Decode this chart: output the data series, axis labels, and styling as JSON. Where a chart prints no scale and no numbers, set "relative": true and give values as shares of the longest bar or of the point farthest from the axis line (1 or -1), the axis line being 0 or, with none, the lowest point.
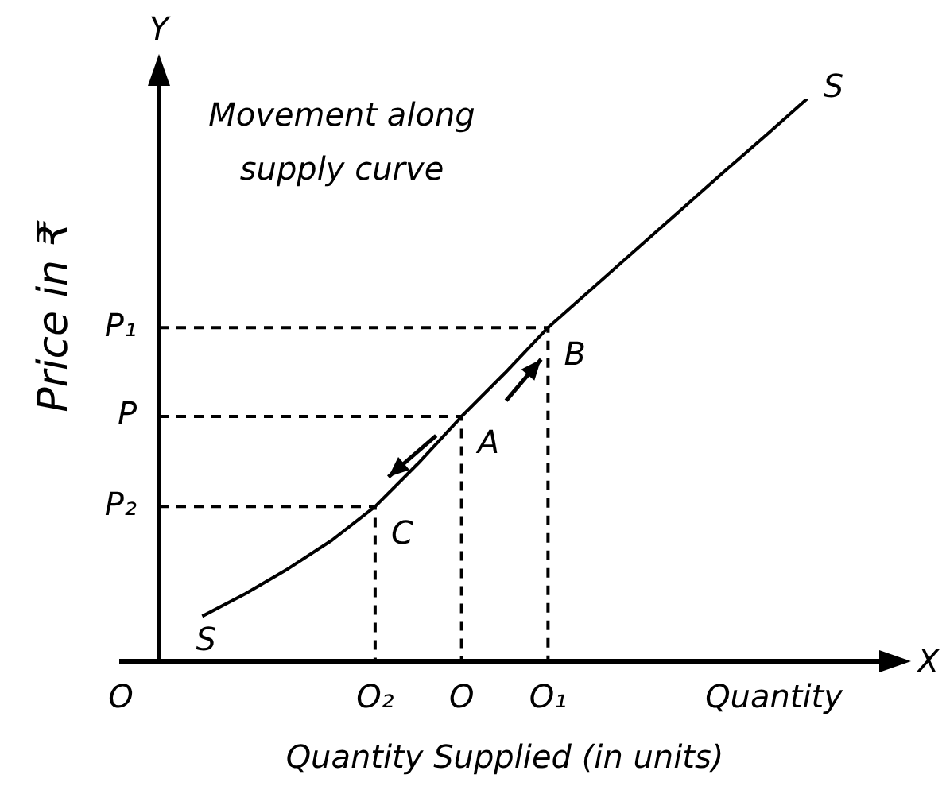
{
  "chart_data": {
    "type": "line",
    "relative": true,
    "title": "Movement along supply curve",
    "xlabel": "Quantity Supplied (in units)",
    "ylabel": "Price in ₹",
    "marker": "none",
    "line_style": "solid",
    "categories": [
      null,
      null,
      null,
      null,
      null,
      null,
      null,
      null,
      null,
      null,
      null,
      null,
      null,
      null,
      null,
      null,
      null
    ],
    "series": [
      {
        "color": "#000000",
        "values": [
          null,
          0.08,
          0.12,
          0.165,
          0.215,
          0.275,
          0.352,
          0.435,
          0.512,
          0.593,
          0.661,
          0.729,
          0.797,
          0.865,
          0.932,
          1.0,
          null
        ]
      }
    ],
    "ref_lines": [
      {
        "axis": "y",
        "value": 0.593,
        "label": "P₁",
        "line_style": "dashed",
        "color": "#000000"
      },
      {
        "axis": "y",
        "value": 0.435,
        "label": "P",
        "line_style": "dashed",
        "color": "#000000"
      },
      {
        "axis": "y",
        "value": 0.275,
        "label": "P₂",
        "line_style": "dashed",
        "color": "#000000"
      }
    ],
    "annotations": [
      "O",
      "O₂",
      "O",
      "O₁",
      "C",
      "A",
      "B",
      "S",
      "S",
      "Y",
      "X",
      "Quantity"
    ]
  }
}
